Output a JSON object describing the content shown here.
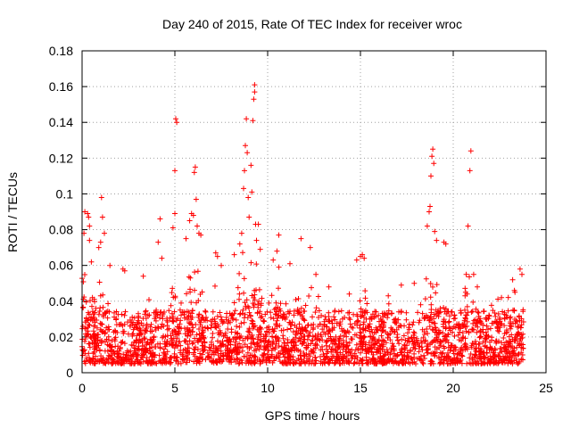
{
  "chart_data": {
    "type": "scatter",
    "title": "Day 240 of 2015, Rate Of TEC Index for receiver wroc",
    "xlabel": "GPS time / hours",
    "ylabel": "ROTI / TECUs",
    "xlim": [
      0,
      25
    ],
    "ylim": [
      0,
      0.18
    ],
    "x_ticks": [
      0,
      5,
      10,
      15,
      20,
      25
    ],
    "x_tick_labels": [
      "0",
      "5",
      "10",
      "15",
      "20",
      "25"
    ],
    "y_ticks": [
      0,
      0.02,
      0.04,
      0.06,
      0.08,
      0.1,
      0.12,
      0.14,
      0.16,
      0.18
    ],
    "y_tick_labels": [
      "0",
      "0.02",
      "0.04",
      "0.06",
      "0.08",
      "0.1",
      "0.12",
      "0.14",
      "0.16",
      "0.18"
    ],
    "grid": true,
    "marker": "+",
    "color": "#ff0000",
    "data_x_range": [
      0,
      23.8
    ],
    "baseline_band": [
      0.005,
      0.035
    ],
    "series": [
      {
        "name": "wroc",
        "points": [
          [
            0.1,
            0.078
          ],
          [
            0.15,
            0.09
          ],
          [
            0.3,
            0.089
          ],
          [
            0.35,
            0.087
          ],
          [
            0.4,
            0.082
          ],
          [
            0.4,
            0.074
          ],
          [
            0.5,
            0.062
          ],
          [
            0.9,
            0.07
          ],
          [
            1.0,
            0.073
          ],
          [
            1.05,
            0.098
          ],
          [
            1.1,
            0.087
          ],
          [
            1.2,
            0.078
          ],
          [
            1.5,
            0.06
          ],
          [
            2.2,
            0.058
          ],
          [
            2.3,
            0.057
          ],
          [
            3.3,
            0.054
          ],
          [
            4.1,
            0.073
          ],
          [
            4.2,
            0.086
          ],
          [
            4.3,
            0.064
          ],
          [
            4.9,
            0.081
          ],
          [
            5.0,
            0.113
          ],
          [
            5.0,
            0.089
          ],
          [
            5.05,
            0.142
          ],
          [
            5.1,
            0.14
          ],
          [
            5.6,
            0.075
          ],
          [
            5.8,
            0.085
          ],
          [
            5.9,
            0.089
          ],
          [
            6.0,
            0.088
          ],
          [
            6.05,
            0.112
          ],
          [
            6.1,
            0.115
          ],
          [
            6.15,
            0.097
          ],
          [
            6.2,
            0.082
          ],
          [
            6.3,
            0.078
          ],
          [
            6.4,
            0.077
          ],
          [
            7.2,
            0.067
          ],
          [
            7.3,
            0.065
          ],
          [
            7.5,
            0.06
          ],
          [
            8.2,
            0.066
          ],
          [
            8.5,
            0.072
          ],
          [
            8.6,
            0.078
          ],
          [
            8.7,
            0.103
          ],
          [
            8.75,
            0.113
          ],
          [
            8.8,
            0.127
          ],
          [
            8.85,
            0.142
          ],
          [
            8.9,
            0.123
          ],
          [
            8.95,
            0.098
          ],
          [
            9.0,
            0.087
          ],
          [
            9.1,
            0.116
          ],
          [
            9.15,
            0.101
          ],
          [
            9.2,
            0.141
          ],
          [
            9.25,
            0.153
          ],
          [
            9.3,
            0.161
          ],
          [
            9.3,
            0.157
          ],
          [
            9.35,
            0.083
          ],
          [
            9.4,
            0.074
          ],
          [
            9.5,
            0.083
          ],
          [
            9.6,
            0.069
          ],
          [
            10.3,
            0.063
          ],
          [
            10.5,
            0.068
          ],
          [
            10.6,
            0.077
          ],
          [
            11.2,
            0.061
          ],
          [
            11.8,
            0.075
          ],
          [
            12.3,
            0.07
          ],
          [
            12.6,
            0.055
          ],
          [
            13.3,
            0.048
          ],
          [
            14.4,
            0.044
          ],
          [
            14.8,
            0.063
          ],
          [
            15.0,
            0.065
          ],
          [
            15.1,
            0.066
          ],
          [
            15.2,
            0.064
          ],
          [
            16.5,
            0.043
          ],
          [
            17.2,
            0.049
          ],
          [
            17.9,
            0.05
          ],
          [
            18.6,
            0.082
          ],
          [
            18.7,
            0.09
          ],
          [
            18.75,
            0.093
          ],
          [
            18.8,
            0.11
          ],
          [
            18.85,
            0.121
          ],
          [
            18.9,
            0.125
          ],
          [
            18.95,
            0.117
          ],
          [
            19.0,
            0.079
          ],
          [
            19.1,
            0.074
          ],
          [
            19.5,
            0.073
          ],
          [
            19.6,
            0.072
          ],
          [
            20.7,
            0.055
          ],
          [
            20.8,
            0.082
          ],
          [
            20.9,
            0.113
          ],
          [
            20.95,
            0.124
          ],
          [
            21.1,
            0.055
          ],
          [
            21.3,
            0.048
          ],
          [
            22.6,
            0.042
          ],
          [
            23.2,
            0.052
          ],
          [
            23.3,
            0.046
          ],
          [
            23.6,
            0.058
          ],
          [
            23.7,
            0.055
          ]
        ]
      }
    ]
  }
}
